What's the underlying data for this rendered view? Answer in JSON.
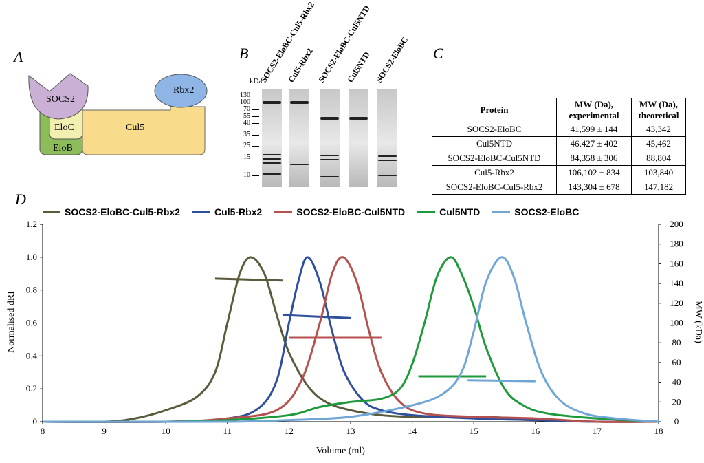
{
  "panels": {
    "a": "A",
    "b": "B",
    "c": "C",
    "d": "D"
  },
  "diagram": {
    "socs2": "SOCS2",
    "eloc": "EloC",
    "elob": "EloB",
    "cul5": "Cul5",
    "rbx2": "Rbx2"
  },
  "gel": {
    "unit": "kDa",
    "markers": [
      "130",
      "100",
      "70",
      "55",
      "40",
      "35",
      "25",
      "15",
      "10"
    ],
    "lanes": [
      "SOCS2-EloBC-Cul5-Rbx2",
      "Cul5-Rbx2",
      "SOCS2-EloBC-Cul5NTD",
      "Cul5NTD",
      "SOCS2-EloBC"
    ]
  },
  "table": {
    "headers": [
      "Protein",
      "MW (Da), experimental",
      "MW (Da), theoretical"
    ],
    "rows": [
      [
        "SOCS2-EloBC",
        "41,599 ± 144",
        "43,342"
      ],
      [
        "Cul5NTD",
        "46,427 ± 402",
        "45,462"
      ],
      [
        "SOCS2-EloBC-Cul5NTD",
        "84,358 ± 306",
        "88,804"
      ],
      [
        "Cul5-Rbx2",
        "106,102 ± 834",
        "103,840"
      ],
      [
        "SOCS2-EloBC-Cul5-Rbx2",
        "143,304 ± 678",
        "147,182"
      ]
    ]
  },
  "chart_data": {
    "type": "line",
    "xlabel": "Volume (ml)",
    "ylabel": "Normalised dRI",
    "y2label": "MW (kDa)",
    "xlim": [
      8,
      18
    ],
    "ylim": [
      0,
      1.2
    ],
    "y2lim": [
      0,
      200
    ],
    "legend": "top",
    "grid": false,
    "xticks": [
      "8",
      "9",
      "10",
      "11",
      "12",
      "13",
      "14",
      "15",
      "16",
      "17",
      "18"
    ],
    "yticks": [
      "0",
      "0.2",
      "0.4",
      "0.6",
      "0.8",
      "1.0",
      "1.2"
    ],
    "y2ticks": [
      "0",
      "20",
      "40",
      "60",
      "80",
      "100",
      "120",
      "140",
      "160",
      "180",
      "200"
    ],
    "series": [
      {
        "name": "SOCS2-EloBC-Cul5-Rbx2",
        "color": "#5b5a3c",
        "x": [
          8,
          9,
          9.5,
          10,
          10.5,
          10.8,
          11,
          11.2,
          11.38,
          11.6,
          11.8,
          12,
          12.3,
          12.6,
          13,
          13.5,
          14,
          15,
          15.5,
          16,
          17,
          18
        ],
        "y": [
          0,
          0,
          0.02,
          0.07,
          0.15,
          0.3,
          0.6,
          0.9,
          1.0,
          0.9,
          0.65,
          0.42,
          0.22,
          0.12,
          0.07,
          0.04,
          0.03,
          0.03,
          0.025,
          0.01,
          0,
          0
        ],
        "mw_x": [
          10.8,
          11.9
        ],
        "mw_kda": [
          145,
          143
        ]
      },
      {
        "name": "Cul5-Rbx2",
        "color": "#2e4f9c",
        "x": [
          8,
          10,
          11,
          11.5,
          11.8,
          12,
          12.15,
          12.3,
          12.5,
          12.7,
          12.9,
          13.2,
          13.5,
          14,
          15,
          16,
          17,
          18
        ],
        "y": [
          0,
          0,
          0.02,
          0.08,
          0.25,
          0.6,
          0.85,
          1.0,
          0.85,
          0.55,
          0.3,
          0.13,
          0.07,
          0.04,
          0.02,
          0.01,
          0,
          0
        ],
        "mw_x": [
          11.9,
          13.0
        ],
        "mw_kda": [
          108,
          105
        ]
      },
      {
        "name": "SOCS2-EloBC-Cul5NTD",
        "color": "#b5504f",
        "x": [
          8,
          10,
          11,
          11.8,
          12.2,
          12.5,
          12.7,
          12.88,
          13.1,
          13.3,
          13.5,
          13.8,
          14.2,
          15,
          16,
          17,
          18
        ],
        "y": [
          0,
          0,
          0.02,
          0.07,
          0.25,
          0.6,
          0.9,
          1.0,
          0.85,
          0.55,
          0.3,
          0.12,
          0.05,
          0.03,
          0.02,
          0,
          0
        ],
        "mw_x": [
          12.0,
          13.5
        ],
        "mw_kda": [
          85,
          85
        ]
      },
      {
        "name": "Cul5NTD",
        "color": "#1e9a3c",
        "x": [
          8,
          10,
          11,
          12,
          12.5,
          13,
          13.5,
          13.8,
          14,
          14.2,
          14.4,
          14.62,
          14.8,
          15,
          15.2,
          15.5,
          15.8,
          16.2,
          17,
          18
        ],
        "y": [
          0,
          0,
          0.01,
          0.04,
          0.09,
          0.12,
          0.14,
          0.2,
          0.35,
          0.6,
          0.88,
          1.0,
          0.9,
          0.7,
          0.45,
          0.2,
          0.1,
          0.05,
          0.02,
          0
        ],
        "mw_x": [
          14.1,
          15.2
        ],
        "mw_kda": [
          46,
          46
        ]
      },
      {
        "name": "SOCS2-EloBC",
        "color": "#6fa6d6",
        "x": [
          8,
          11,
          12,
          13,
          14,
          14.5,
          14.8,
          15,
          15.2,
          15.45,
          15.65,
          15.85,
          16.1,
          16.4,
          16.8,
          17.3,
          18
        ],
        "y": [
          0,
          0,
          0.01,
          0.03,
          0.1,
          0.17,
          0.3,
          0.55,
          0.85,
          1.0,
          0.88,
          0.6,
          0.3,
          0.13,
          0.05,
          0.02,
          0
        ],
        "mw_x": [
          14.9,
          16.0
        ],
        "mw_kda": [
          42,
          41
        ]
      }
    ]
  }
}
